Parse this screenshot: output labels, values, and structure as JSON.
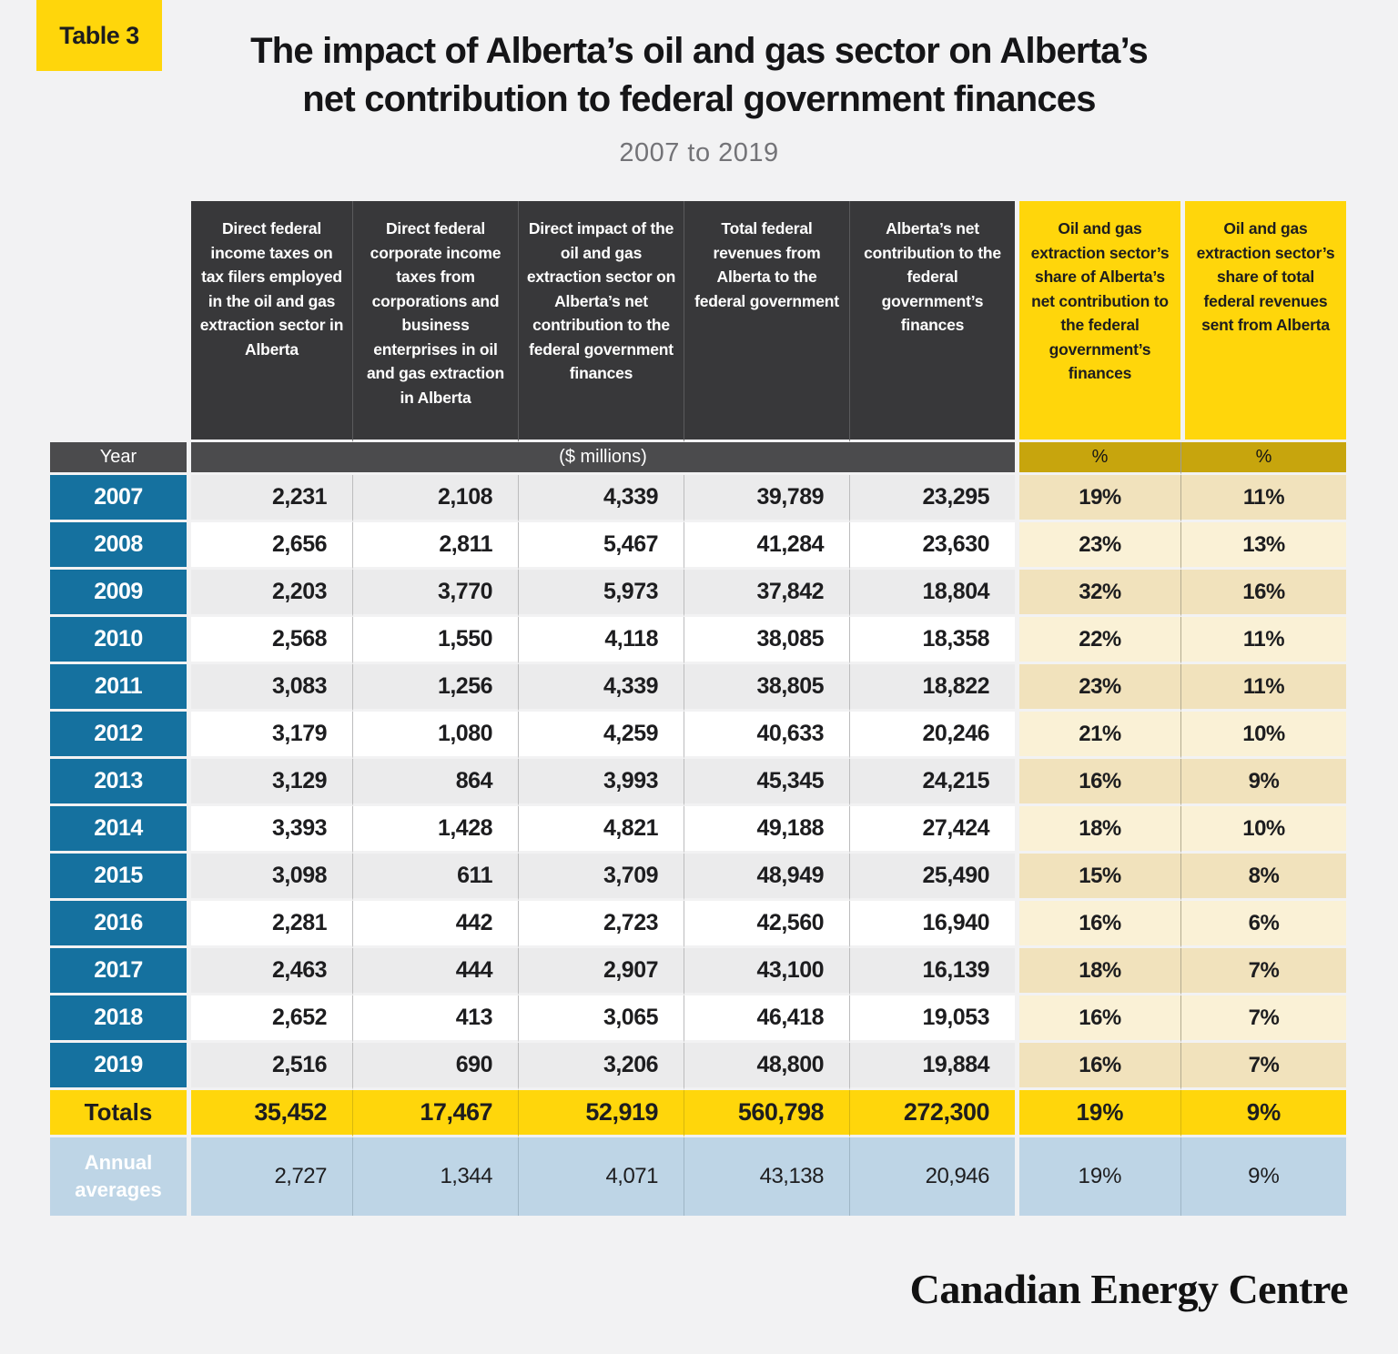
{
  "badge": "Table 3",
  "title": {
    "line1": "The impact of Alberta’s oil and gas sector on Alberta’s",
    "line2": "net contribution to federal government finances"
  },
  "subtitle": "2007 to 2019",
  "footer_logo": "Canadian Energy Centre",
  "colors": {
    "accent_yellow": "#ffd60b",
    "charcoal_header": "#38383a",
    "units_bar_gray": "#4b4b4d",
    "percent_bar_gold": "#c7a50d",
    "year_blue": "#15719f",
    "annual_avg_lightblue": "#bed5e6",
    "row_gray": "#ebebec",
    "percent_cream_dark": "#f1e2bc",
    "percent_cream_light": "#faf1d6",
    "page_background": "#f2f2f3"
  },
  "chart_data": {
    "type": "table",
    "title": "The impact of Alberta’s oil and gas sector on Alberta’s net contribution to federal government finances",
    "subtitle": "2007 to 2019",
    "columns": [
      "Direct federal income taxes on tax filers employed in the oil and gas extraction sector in Alberta",
      "Direct federal corporate income taxes from corporations and business enterprises in oil and gas extraction in Alberta",
      "Direct impact of the oil and gas extraction sector on Alberta’s net contribution to the federal government finances",
      "Total federal revenues from Alberta to the federal government",
      "Alberta’s net contribution to the federal government’s finances",
      "Oil and gas extraction sector’s share of Alberta’s net contribution to the federal government’s finances",
      "Oil and gas extraction sector’s share of total federal revenues sent from Alberta"
    ],
    "units": {
      "year_label": "Year",
      "millions_label": "($ millions)",
      "pct_label": "%"
    },
    "rows": [
      [
        "2007",
        "2,231",
        "2,108",
        "4,339",
        "39,789",
        "23,295",
        "19%",
        "11%"
      ],
      [
        "2008",
        "2,656",
        "2,811",
        "5,467",
        "41,284",
        "23,630",
        "23%",
        "13%"
      ],
      [
        "2009",
        "2,203",
        "3,770",
        "5,973",
        "37,842",
        "18,804",
        "32%",
        "16%"
      ],
      [
        "2010",
        "2,568",
        "1,550",
        "4,118",
        "38,085",
        "18,358",
        "22%",
        "11%"
      ],
      [
        "2011",
        "3,083",
        "1,256",
        "4,339",
        "38,805",
        "18,822",
        "23%",
        "11%"
      ],
      [
        "2012",
        "3,179",
        "1,080",
        "4,259",
        "40,633",
        "20,246",
        "21%",
        "10%"
      ],
      [
        "2013",
        "3,129",
        "864",
        "3,993",
        "45,345",
        "24,215",
        "16%",
        "9%"
      ],
      [
        "2014",
        "3,393",
        "1,428",
        "4,821",
        "49,188",
        "27,424",
        "18%",
        "10%"
      ],
      [
        "2015",
        "3,098",
        "611",
        "3,709",
        "48,949",
        "25,490",
        "15%",
        "8%"
      ],
      [
        "2016",
        "2,281",
        "442",
        "2,723",
        "42,560",
        "16,940",
        "16%",
        "6%"
      ],
      [
        "2017",
        "2,463",
        "444",
        "2,907",
        "43,100",
        "16,139",
        "18%",
        "7%"
      ],
      [
        "2018",
        "2,652",
        "413",
        "3,065",
        "46,418",
        "19,053",
        "16%",
        "7%"
      ],
      [
        "2019",
        "2,516",
        "690",
        "3,206",
        "48,800",
        "19,884",
        "16%",
        "7%"
      ]
    ],
    "totals_row": [
      "Totals",
      "35,452",
      "17,467",
      "52,919",
      "560,798",
      "272,300",
      "19%",
      "9%"
    ],
    "averages_row": [
      "Annual averages",
      "2,727",
      "1,344",
      "4,071",
      "43,138",
      "20,946",
      "19%",
      "9%"
    ]
  }
}
